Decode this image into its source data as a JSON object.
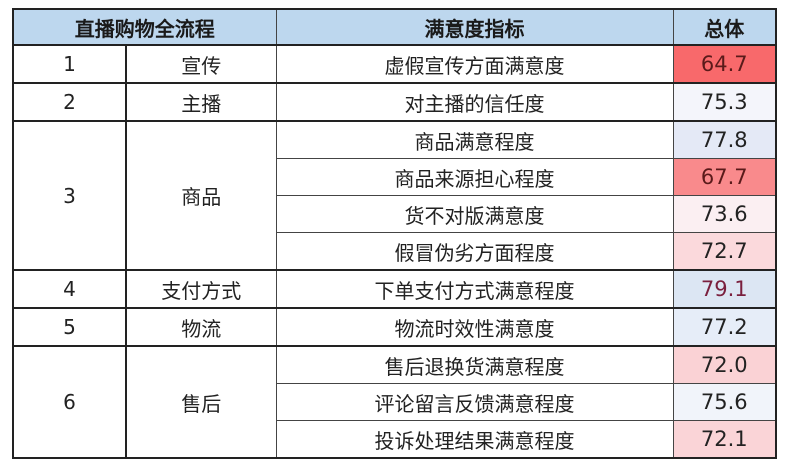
{
  "headers": {
    "process": "直播购物全流程",
    "indicator": "满意度指标",
    "overall": "总体"
  },
  "groups": [
    {
      "no": "1",
      "stage": "宣传",
      "items": [
        {
          "indicator": "虚假宣传方面满意度",
          "value": "64.7",
          "bg": "#f8696b",
          "color": "#5a1a1a"
        }
      ]
    },
    {
      "no": "2",
      "stage": "主播",
      "items": [
        {
          "indicator": "对主播的信任度",
          "value": "75.3",
          "bg": "#f4f5fb",
          "color": "#222222"
        }
      ]
    },
    {
      "no": "3",
      "stage": "商品",
      "items": [
        {
          "indicator": "商品满意程度",
          "value": "77.8",
          "bg": "#e4e9f6",
          "color": "#222222"
        },
        {
          "indicator": "商品来源担心程度",
          "value": "67.7",
          "bg": "#f98a8c",
          "color": "#5a1a1a"
        },
        {
          "indicator": "货不对版满意度",
          "value": "73.6",
          "bg": "#fbeff2",
          "color": "#222222"
        },
        {
          "indicator": "假冒伪劣方面程度",
          "value": "72.7",
          "bg": "#fbd9dc",
          "color": "#222222"
        }
      ]
    },
    {
      "no": "4",
      "stage": "支付方式",
      "items": [
        {
          "indicator": "下单支付方式满意程度",
          "value": "79.1",
          "bg": "#dce6f3",
          "color": "#7a1f3d"
        }
      ]
    },
    {
      "no": "5",
      "stage": "物流",
      "items": [
        {
          "indicator": "物流时效性满意度",
          "value": "77.2",
          "bg": "#e6edf8",
          "color": "#222222"
        }
      ]
    },
    {
      "no": "6",
      "stage": "售后",
      "items": [
        {
          "indicator": "售后退换货满意程度",
          "value": "72.0",
          "bg": "#fad2d5",
          "color": "#222222"
        },
        {
          "indicator": "评论留言反馈满意程度",
          "value": "75.6",
          "bg": "#f1f4fa",
          "color": "#222222"
        },
        {
          "indicator": "投诉处理结果满意程度",
          "value": "72.1",
          "bg": "#fad4d7",
          "color": "#222222"
        }
      ]
    }
  ]
}
